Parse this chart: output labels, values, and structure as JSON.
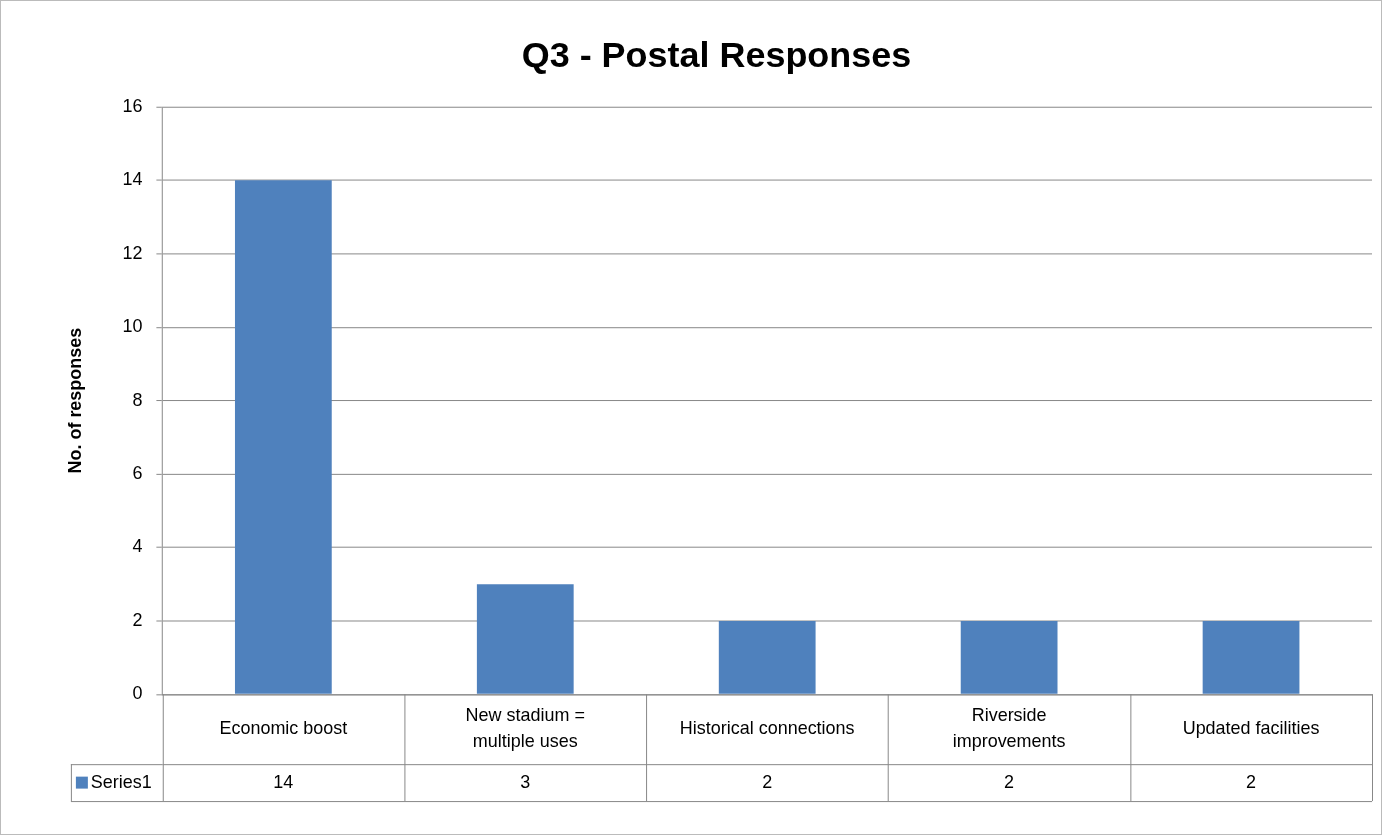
{
  "chart_data": {
    "type": "bar",
    "title": "Q3 - Postal Responses",
    "ylabel": "No. of responses",
    "categories": [
      "Economic boost",
      "New stadium = multiple uses",
      "Historical connections",
      "Riverside improvements",
      "Updated facilities"
    ],
    "series": [
      {
        "name": "Series1",
        "color": "#4f81bd",
        "values": [
          14,
          3,
          2,
          2,
          2
        ]
      }
    ],
    "ylim": [
      0,
      16
    ],
    "yticks": [
      0,
      2,
      4,
      6,
      8,
      10,
      12,
      14,
      16
    ],
    "grid": "y",
    "legend": "bottom",
    "data_labels": true
  }
}
